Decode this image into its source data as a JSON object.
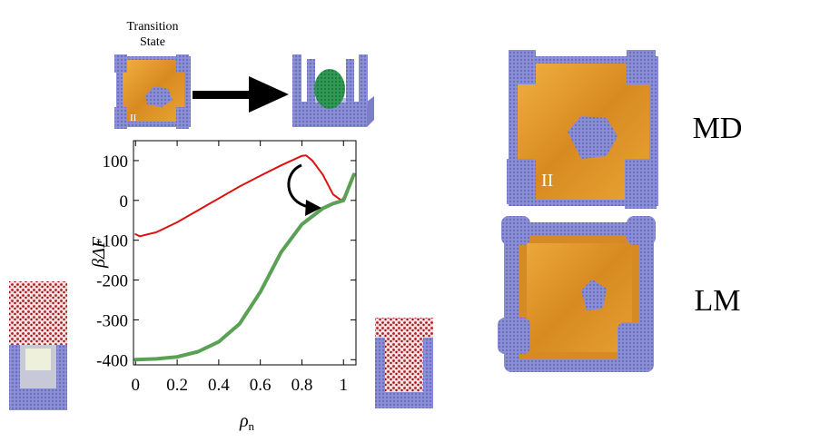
{
  "figure": {
    "transition_label_line1": "Transition",
    "transition_label_line2": "State",
    "roman_label": "II",
    "md_label": "MD",
    "lm_label": "LM",
    "colors": {
      "red": "#dd1111",
      "green": "#5aa055",
      "orange": "#e09a2a",
      "blue": "#8a8fd8",
      "sphere": "#2f9a55"
    }
  },
  "chart_data": {
    "type": "line",
    "title": "",
    "xlabel": "ρ",
    "xlabel_sub": "n",
    "ylabel": "βΔF",
    "xlim": [
      -0.01,
      1.06
    ],
    "ylim": [
      -413,
      150
    ],
    "xticks": [
      0,
      0.2,
      0.4,
      0.6,
      0.8,
      1
    ],
    "xtick_labels": [
      "0",
      "0.2",
      "0.4",
      "0.6",
      "0.8",
      "1"
    ],
    "yticks": [
      100,
      0,
      -100,
      -200,
      -300,
      -400
    ],
    "ytick_labels": [
      "100",
      "0",
      "-100",
      "-200",
      "-300",
      "-400"
    ],
    "series": [
      {
        "name": "red",
        "color": "#dd1111",
        "x": [
          0,
          0.02,
          0.1,
          0.2,
          0.3,
          0.4,
          0.5,
          0.6,
          0.7,
          0.8,
          0.82,
          0.85,
          0.9,
          0.95,
          0.99,
          1.02,
          1.03
        ],
        "y": [
          -85,
          -90,
          -80,
          -55,
          -25,
          5,
          35,
          62,
          88,
          112,
          113,
          100,
          65,
          15,
          0,
          20,
          45
        ]
      },
      {
        "name": "green",
        "color": "#5aa055",
        "x": [
          0,
          0.1,
          0.2,
          0.3,
          0.4,
          0.5,
          0.6,
          0.7,
          0.8,
          0.9,
          0.95,
          1.0,
          1.05
        ],
        "y": [
          -400,
          -398,
          -393,
          -380,
          -355,
          -310,
          -230,
          -130,
          -60,
          -20,
          -8,
          0,
          65
        ]
      }
    ]
  }
}
